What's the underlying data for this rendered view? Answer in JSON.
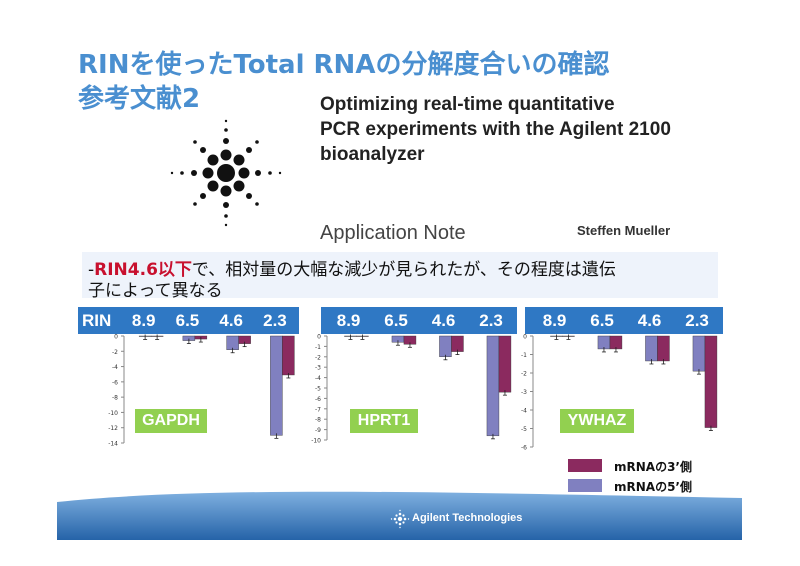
{
  "header": {
    "title_line1": "RINを使ったTotal RNAの分解度合いの確認",
    "title_line2": "参考文献2"
  },
  "reference": {
    "title_lines": [
      "Optimizing real-time quantitative",
      "PCR experiments with the Agilent 2100",
      "bioanalyzer"
    ],
    "doc_type": "Application Note",
    "author": "Steffen Mueller"
  },
  "note": {
    "dash": "-",
    "highlight": "RIN4.6以下",
    "line1_rest": "で、相対量の大幅な減少が見られたが、その程度は遺伝",
    "line2": "子によって異なる"
  },
  "rin_label": "RIN",
  "rin_values": [
    "8.9",
    "6.5",
    "4.6",
    "2.3"
  ],
  "legend": [
    {
      "label": "mRNAの3’側",
      "color": "#8b2a5f"
    },
    {
      "label": "mRNAの5’側",
      "color": "#8080c0"
    }
  ],
  "footer": {
    "brand": "Agilent Technologies"
  },
  "colors": {
    "title": "#4a8fd0",
    "accent_blue": "#2f78c4",
    "gene_label": "#92d050",
    "three_prime": "#8b2a5f",
    "five_prime": "#8080c0"
  },
  "chart_data": [
    {
      "type": "bar",
      "gene": "GAPDH",
      "categories": [
        "8.9",
        "6.5",
        "4.6",
        "2.3"
      ],
      "ylim": [
        -14,
        0
      ],
      "yticks": [
        "0",
        "-2",
        "-4",
        "-6",
        "-8",
        "-10",
        "-12",
        "-14"
      ],
      "series": [
        {
          "name": "mRNAの5’側",
          "values": [
            0,
            -0.6,
            -1.8,
            -13
          ]
        },
        {
          "name": "mRNAの3’側",
          "values": [
            0,
            -0.4,
            -1.0,
            -5.1
          ]
        }
      ]
    },
    {
      "type": "bar",
      "gene": "HPRT1",
      "categories": [
        "8.9",
        "6.5",
        "4.6",
        "2.3"
      ],
      "ylim": [
        -10,
        0
      ],
      "yticks": [
        "0",
        "-1",
        "-2",
        "-3",
        "-4",
        "-5",
        "-6",
        "-7",
        "-8",
        "-9",
        "-10"
      ],
      "series": [
        {
          "name": "mRNAの5’側",
          "values": [
            0,
            -0.6,
            -2.0,
            -9.6
          ]
        },
        {
          "name": "mRNAの3’側",
          "values": [
            0,
            -0.8,
            -1.5,
            -5.4
          ]
        }
      ]
    },
    {
      "type": "bar",
      "gene": "YWHAZ",
      "categories": [
        "8.9",
        "6.5",
        "4.6",
        "2.3"
      ],
      "ylim": [
        -6,
        0
      ],
      "yticks": [
        "0",
        "-1",
        "-2",
        "-3",
        "-4",
        "-5",
        "-6"
      ],
      "series": [
        {
          "name": "mRNAの5’側",
          "values": [
            0,
            -0.7,
            -1.35,
            -1.9
          ]
        },
        {
          "name": "mRNAの3’側",
          "values": [
            0,
            -0.7,
            -1.35,
            -4.95
          ]
        }
      ]
    }
  ]
}
